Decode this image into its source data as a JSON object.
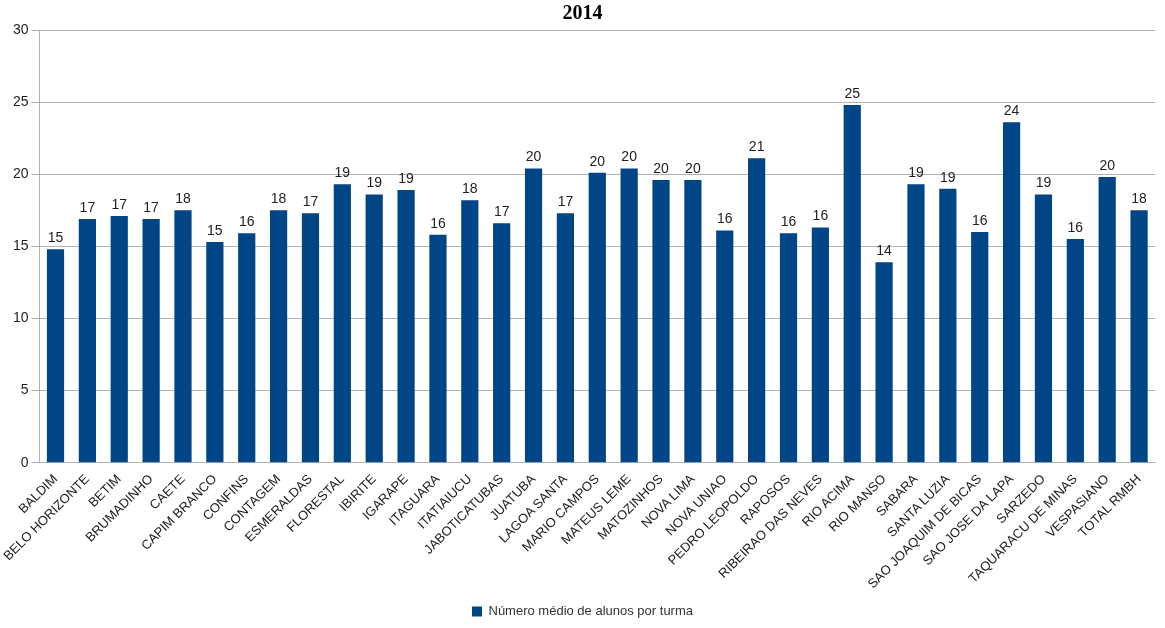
{
  "chart_data": {
    "type": "bar",
    "title": "2014",
    "categories": [
      "BALDIM",
      "BELO HORIZONTE",
      "BETIM",
      "BRUMADINHO",
      "CAETE",
      "CAPIM BRANCO",
      "CONFINS",
      "CONTAGEM",
      "ESMERALDAS",
      "FLORESTAL",
      "IBIRITE",
      "IGARAPE",
      "ITAGUARA",
      "ITATIAIUCU",
      "JABOTICATUBAS",
      "JUATUBA",
      "LAGOA SANTA",
      "MARIO CAMPOS",
      "MATEUS LEME",
      "MATOZINHOS",
      "NOVA LIMA",
      "NOVA UNIAO",
      "PEDRO LEOPOLDO",
      "RAPOSOS",
      "RIBEIRAO DAS NEVES",
      "RIO ACIMA",
      "RIO MANSO",
      "SABARA",
      "SANTA LUZIA",
      "SAO JOAQUIM DE BICAS",
      "SAO JOSE DA LAPA",
      "SARZEDO",
      "TAQUARACU DE MINAS",
      "VESPASIANO",
      "TOTAL RMBH"
    ],
    "series": [
      {
        "name": "Número médio de alunos por turma",
        "color": "#004586",
        "values": [
          14.8,
          16.9,
          17.1,
          16.9,
          17.5,
          15.3,
          15.9,
          17.5,
          17.3,
          19.3,
          18.6,
          18.9,
          15.8,
          18.2,
          16.6,
          20.4,
          17.3,
          20.1,
          20.4,
          19.6,
          19.6,
          16.1,
          21.1,
          15.9,
          16.3,
          24.8,
          13.9,
          19.3,
          19.0,
          16.0,
          23.6,
          18.6,
          15.5,
          19.8,
          17.5
        ],
        "value_labels": [
          "15",
          "17",
          "17",
          "17",
          "18",
          "15",
          "16",
          "18",
          "17",
          "19",
          "19",
          "19",
          "16",
          "18",
          "17",
          "20",
          "17",
          "20",
          "20",
          "20",
          "20",
          "16",
          "21",
          "16",
          "16",
          "25",
          "14",
          "19",
          "19",
          "16",
          "24",
          "19",
          "16",
          "20",
          "18"
        ]
      }
    ],
    "ylim": [
      0,
      30
    ],
    "yticks": [
      0,
      5,
      10,
      15,
      20,
      25,
      30
    ],
    "grid": "y",
    "legend": "bottom"
  }
}
